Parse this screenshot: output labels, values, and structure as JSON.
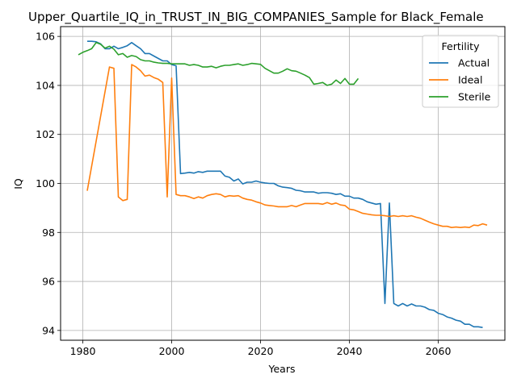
{
  "chart_data": {
    "type": "line",
    "title": "Upper_Quartile_IQ_in_TRUST_IN_BIG_COMPANIES_Sample for Black_Female",
    "xlabel": "Years",
    "ylabel": "IQ",
    "xlim": [
      1975,
      2075
    ],
    "ylim": [
      93.6,
      106.4
    ],
    "xticks": [
      1980,
      2000,
      2020,
      2040,
      2060
    ],
    "yticks": [
      94,
      96,
      98,
      100,
      102,
      104,
      106
    ],
    "grid": true,
    "legend": {
      "title": "Fertility",
      "placement": "top-right"
    },
    "series": [
      {
        "name": "Actual",
        "color": "#1f77b4",
        "points": [
          [
            1981,
            105.8
          ],
          [
            1982,
            105.8
          ],
          [
            1983,
            105.78
          ],
          [
            1984,
            105.7
          ],
          [
            1985,
            105.5
          ],
          [
            1986,
            105.5
          ],
          [
            1987,
            105.6
          ],
          [
            1988,
            105.5
          ],
          [
            1989,
            105.55
          ],
          [
            1990,
            105.62
          ],
          [
            1991,
            105.75
          ],
          [
            1992,
            105.62
          ],
          [
            1993,
            105.5
          ],
          [
            1994,
            105.3
          ],
          [
            1995,
            105.3
          ],
          [
            1996,
            105.2
          ],
          [
            1997,
            105.1
          ],
          [
            1998,
            105.0
          ],
          [
            1999,
            105.0
          ],
          [
            2000,
            104.85
          ],
          [
            2001,
            104.8
          ],
          [
            2002,
            100.4
          ],
          [
            2003,
            100.42
          ],
          [
            2004,
            100.45
          ],
          [
            2005,
            100.42
          ],
          [
            2006,
            100.48
          ],
          [
            2007,
            100.45
          ],
          [
            2008,
            100.5
          ],
          [
            2009,
            100.5
          ],
          [
            2010,
            100.5
          ],
          [
            2011,
            100.5
          ],
          [
            2012,
            100.3
          ],
          [
            2013,
            100.25
          ],
          [
            2014,
            100.1
          ],
          [
            2015,
            100.18
          ],
          [
            2016,
            99.98
          ],
          [
            2017,
            100.05
          ],
          [
            2018,
            100.05
          ],
          [
            2019,
            100.1
          ],
          [
            2020,
            100.05
          ],
          [
            2021,
            100.02
          ],
          [
            2022,
            100.0
          ],
          [
            2023,
            100.0
          ],
          [
            2024,
            99.9
          ],
          [
            2025,
            99.85
          ],
          [
            2026,
            99.83
          ],
          [
            2027,
            99.8
          ],
          [
            2028,
            99.72
          ],
          [
            2029,
            99.7
          ],
          [
            2030,
            99.65
          ],
          [
            2031,
            99.65
          ],
          [
            2032,
            99.65
          ],
          [
            2033,
            99.6
          ],
          [
            2034,
            99.62
          ],
          [
            2035,
            99.62
          ],
          [
            2036,
            99.6
          ],
          [
            2037,
            99.55
          ],
          [
            2038,
            99.58
          ],
          [
            2039,
            99.48
          ],
          [
            2040,
            99.48
          ],
          [
            2041,
            99.4
          ],
          [
            2042,
            99.4
          ],
          [
            2043,
            99.35
          ],
          [
            2044,
            99.25
          ],
          [
            2045,
            99.2
          ],
          [
            2046,
            99.15
          ],
          [
            2047,
            99.18
          ],
          [
            2048,
            95.1
          ],
          [
            2049,
            99.2
          ],
          [
            2050,
            95.1
          ],
          [
            2051,
            95.0
          ],
          [
            2052,
            95.1
          ],
          [
            2053,
            95.0
          ],
          [
            2054,
            95.08
          ],
          [
            2055,
            95.0
          ],
          [
            2056,
            95.0
          ],
          [
            2057,
            94.95
          ],
          [
            2058,
            94.85
          ],
          [
            2059,
            94.82
          ],
          [
            2060,
            94.7
          ],
          [
            2061,
            94.65
          ],
          [
            2062,
            94.55
          ],
          [
            2063,
            94.5
          ],
          [
            2064,
            94.42
          ],
          [
            2065,
            94.38
          ],
          [
            2066,
            94.25
          ],
          [
            2067,
            94.25
          ],
          [
            2068,
            94.15
          ],
          [
            2069,
            94.15
          ],
          [
            2070,
            94.12
          ]
        ]
      },
      {
        "name": "Ideal",
        "color": "#ff7f0e",
        "points": [
          [
            1981,
            99.7
          ],
          [
            1986,
            104.75
          ],
          [
            1987,
            104.7
          ],
          [
            1988,
            99.45
          ],
          [
            1989,
            99.3
          ],
          [
            1990,
            99.35
          ],
          [
            1991,
            104.85
          ],
          [
            1992,
            104.75
          ],
          [
            1993,
            104.6
          ],
          [
            1994,
            104.38
          ],
          [
            1995,
            104.42
          ],
          [
            1996,
            104.32
          ],
          [
            1997,
            104.25
          ],
          [
            1998,
            104.12
          ],
          [
            1999,
            99.45
          ],
          [
            2000,
            104.3
          ],
          [
            2001,
            99.55
          ],
          [
            2002,
            99.5
          ],
          [
            2003,
            99.5
          ],
          [
            2004,
            99.45
          ],
          [
            2005,
            99.38
          ],
          [
            2006,
            99.45
          ],
          [
            2007,
            99.4
          ],
          [
            2008,
            99.5
          ],
          [
            2009,
            99.55
          ],
          [
            2010,
            99.58
          ],
          [
            2011,
            99.55
          ],
          [
            2012,
            99.45
          ],
          [
            2013,
            99.5
          ],
          [
            2014,
            99.48
          ],
          [
            2015,
            99.5
          ],
          [
            2016,
            99.4
          ],
          [
            2017,
            99.35
          ],
          [
            2018,
            99.32
          ],
          [
            2019,
            99.25
          ],
          [
            2020,
            99.2
          ],
          [
            2021,
            99.12
          ],
          [
            2022,
            99.1
          ],
          [
            2023,
            99.08
          ],
          [
            2024,
            99.05
          ],
          [
            2025,
            99.05
          ],
          [
            2026,
            99.05
          ],
          [
            2027,
            99.1
          ],
          [
            2028,
            99.05
          ],
          [
            2029,
            99.12
          ],
          [
            2030,
            99.18
          ],
          [
            2031,
            99.18
          ],
          [
            2032,
            99.18
          ],
          [
            2033,
            99.18
          ],
          [
            2034,
            99.15
          ],
          [
            2035,
            99.22
          ],
          [
            2036,
            99.15
          ],
          [
            2037,
            99.2
          ],
          [
            2038,
            99.12
          ],
          [
            2039,
            99.1
          ],
          [
            2040,
            98.95
          ],
          [
            2041,
            98.92
          ],
          [
            2042,
            98.85
          ],
          [
            2043,
            98.78
          ],
          [
            2044,
            98.75
          ],
          [
            2045,
            98.72
          ],
          [
            2046,
            98.7
          ],
          [
            2047,
            98.7
          ],
          [
            2048,
            98.68
          ],
          [
            2049,
            98.65
          ],
          [
            2050,
            98.68
          ],
          [
            2051,
            98.65
          ],
          [
            2052,
            98.68
          ],
          [
            2053,
            98.65
          ],
          [
            2054,
            98.68
          ],
          [
            2055,
            98.62
          ],
          [
            2056,
            98.58
          ],
          [
            2057,
            98.5
          ],
          [
            2058,
            98.42
          ],
          [
            2059,
            98.35
          ],
          [
            2060,
            98.3
          ],
          [
            2061,
            98.25
          ],
          [
            2062,
            98.25
          ],
          [
            2063,
            98.2
          ],
          [
            2064,
            98.22
          ],
          [
            2065,
            98.2
          ],
          [
            2066,
            98.22
          ],
          [
            2067,
            98.2
          ],
          [
            2068,
            98.3
          ],
          [
            2069,
            98.28
          ],
          [
            2070,
            98.35
          ],
          [
            2071,
            98.3
          ]
        ]
      },
      {
        "name": "Sterile",
        "color": "#2ca02c",
        "points": [
          [
            1979,
            105.25
          ],
          [
            1980,
            105.35
          ],
          [
            1981,
            105.42
          ],
          [
            1982,
            105.5
          ],
          [
            1983,
            105.75
          ],
          [
            1984,
            105.68
          ],
          [
            1985,
            105.52
          ],
          [
            1986,
            105.6
          ],
          [
            1987,
            105.48
          ],
          [
            1988,
            105.25
          ],
          [
            1989,
            105.3
          ],
          [
            1990,
            105.15
          ],
          [
            1991,
            105.22
          ],
          [
            1992,
            105.18
          ],
          [
            1993,
            105.05
          ],
          [
            1994,
            105.0
          ],
          [
            1995,
            105.0
          ],
          [
            1996,
            104.95
          ],
          [
            1997,
            104.92
          ],
          [
            1998,
            104.9
          ],
          [
            1999,
            104.9
          ],
          [
            2000,
            104.88
          ],
          [
            2001,
            104.88
          ],
          [
            2002,
            104.88
          ],
          [
            2003,
            104.88
          ],
          [
            2004,
            104.82
          ],
          [
            2005,
            104.85
          ],
          [
            2006,
            104.82
          ],
          [
            2007,
            104.75
          ],
          [
            2008,
            104.75
          ],
          [
            2009,
            104.78
          ],
          [
            2010,
            104.72
          ],
          [
            2011,
            104.78
          ],
          [
            2012,
            104.82
          ],
          [
            2013,
            104.82
          ],
          [
            2014,
            104.85
          ],
          [
            2015,
            104.88
          ],
          [
            2016,
            104.82
          ],
          [
            2017,
            104.85
          ],
          [
            2018,
            104.9
          ],
          [
            2019,
            104.88
          ],
          [
            2020,
            104.86
          ],
          [
            2021,
            104.7
          ],
          [
            2022,
            104.6
          ],
          [
            2023,
            104.5
          ],
          [
            2024,
            104.5
          ],
          [
            2025,
            104.58
          ],
          [
            2026,
            104.68
          ],
          [
            2027,
            104.6
          ],
          [
            2028,
            104.58
          ],
          [
            2029,
            104.5
          ],
          [
            2030,
            104.42
          ],
          [
            2031,
            104.32
          ],
          [
            2032,
            104.05
          ],
          [
            2033,
            104.08
          ],
          [
            2034,
            104.12
          ],
          [
            2035,
            104.0
          ],
          [
            2036,
            104.05
          ],
          [
            2037,
            104.22
          ],
          [
            2038,
            104.08
          ],
          [
            2039,
            104.28
          ],
          [
            2040,
            104.05
          ],
          [
            2041,
            104.05
          ],
          [
            2042,
            104.28
          ]
        ]
      }
    ]
  }
}
